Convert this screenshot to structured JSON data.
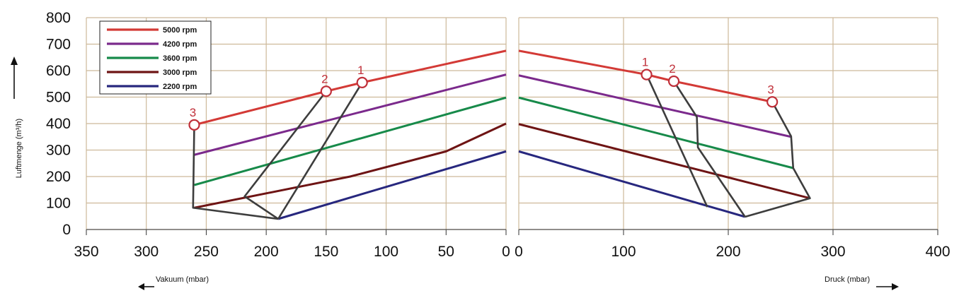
{
  "chart_data": {
    "type": "line",
    "y_axis": {
      "label": "Luftmenge (m³/h)",
      "ticks": [
        0,
        100,
        200,
        300,
        400,
        500,
        600,
        700,
        800
      ],
      "range": [
        0,
        800
      ]
    },
    "panels": [
      {
        "side": "vacuum",
        "x_label": "Vakuum (mbar)",
        "x_ticks": [
          350,
          300,
          250,
          200,
          150,
          100,
          50,
          0
        ],
        "x_range": [
          350,
          0
        ]
      },
      {
        "side": "pressure",
        "x_label": "Druck (mbar)",
        "x_ticks": [
          0,
          100,
          200,
          300,
          400
        ],
        "x_range": [
          0,
          400
        ]
      }
    ],
    "legend": {
      "placement": "top-left",
      "entries": [
        "5000 rpm",
        "4200 rpm",
        "3600 rpm",
        "3000 rpm",
        "2200 rpm"
      ]
    },
    "series": [
      {
        "name": "5000 rpm",
        "color": "#d33a36",
        "vacuum": [
          [
            260,
            395
          ],
          [
            150,
            522
          ],
          [
            120,
            555
          ],
          [
            0,
            675
          ]
        ],
        "pressure": [
          [
            0,
            675
          ],
          [
            122,
            585
          ],
          [
            148,
            560
          ],
          [
            242,
            482
          ]
        ]
      },
      {
        "name": "4200 rpm",
        "color": "#7b2a8c",
        "vacuum": [
          [
            260,
            282
          ],
          [
            0,
            585
          ]
        ],
        "pressure": [
          [
            0,
            582
          ],
          [
            260,
            350
          ]
        ]
      },
      {
        "name": "3600 rpm",
        "color": "#178a4a",
        "vacuum": [
          [
            260,
            168
          ],
          [
            0,
            498
          ]
        ],
        "pressure": [
          [
            0,
            498
          ],
          [
            262,
            232
          ]
        ]
      },
      {
        "name": "3000 rpm",
        "color": "#6e1414",
        "vacuum": [
          [
            260,
            82
          ],
          [
            130,
            200
          ],
          [
            50,
            295
          ],
          [
            0,
            400
          ]
        ],
        "pressure": [
          [
            0,
            398
          ],
          [
            278,
            118
          ]
        ]
      },
      {
        "name": "2200 rpm",
        "color": "#27277e",
        "vacuum": [
          [
            190,
            40
          ],
          [
            0,
            295
          ]
        ],
        "pressure": [
          [
            0,
            295
          ],
          [
            216,
            48
          ]
        ]
      }
    ],
    "limit_curves": {
      "color": "#3d3d3d",
      "vacuum": [
        {
          "label": "1",
          "points": [
            [
              120,
              555
            ],
            [
              190,
              40
            ]
          ]
        },
        {
          "label": "2",
          "points": [
            [
              150,
              522
            ],
            [
              218,
              125
            ],
            [
              190,
              40
            ]
          ]
        },
        {
          "label": "3",
          "points": [
            [
              260,
              395
            ],
            [
              261,
              82
            ],
            [
              190,
              40
            ]
          ]
        }
      ],
      "pressure": [
        {
          "label": "1",
          "points": [
            [
              122,
              585
            ],
            [
              180,
              85
            ]
          ]
        },
        {
          "label": "2",
          "points": [
            [
              148,
              560
            ],
            [
              170,
              425
            ],
            [
              171,
              310
            ],
            [
              216,
              48
            ]
          ]
        },
        {
          "label": "3",
          "points": [
            [
              242,
              482
            ],
            [
              260,
              352
            ],
            [
              262,
              232
            ],
            [
              278,
              118
            ],
            [
              216,
              48
            ]
          ]
        }
      ]
    },
    "marked_points": {
      "vacuum": [
        {
          "label": "1",
          "x": 120,
          "y": 555
        },
        {
          "label": "2",
          "x": 150,
          "y": 522
        },
        {
          "label": "3",
          "x": 260,
          "y": 395
        }
      ],
      "pressure": [
        {
          "label": "1",
          "x": 122,
          "y": 585
        },
        {
          "label": "2",
          "x": 148,
          "y": 560
        },
        {
          "label": "3",
          "x": 242,
          "y": 482
        }
      ]
    },
    "grid": true,
    "grid_color": "#cdb99a"
  }
}
